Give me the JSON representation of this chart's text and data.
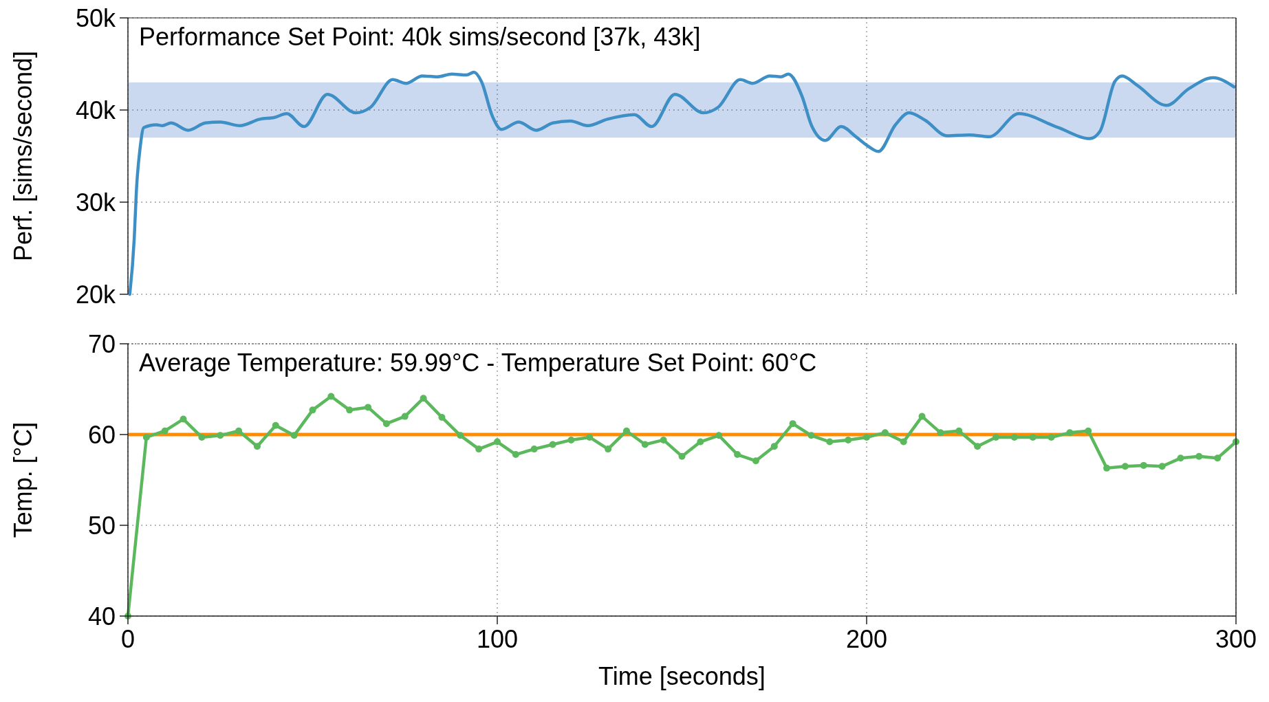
{
  "chart_data": [
    {
      "type": "line",
      "title": "Performance Set Point: 40k sims/second [37k, 43k]",
      "ylabel": "Perf. [sims/second]",
      "xlim": [
        0,
        300
      ],
      "xticks": [
        0,
        100,
        200,
        300
      ],
      "ylim": [
        20000,
        50000
      ],
      "yticks": [
        {
          "value": 20000,
          "label": "20k"
        },
        {
          "value": 30000,
          "label": "30k"
        },
        {
          "value": 40000,
          "label": "40k"
        },
        {
          "value": 50000,
          "label": "50k"
        }
      ],
      "tick_labels": "y",
      "grid": true,
      "line_style": "solid",
      "marker": "none",
      "bands": [
        {
          "axis": "y",
          "from": 37000,
          "to": 43000,
          "color": "#cbd9f0"
        }
      ],
      "series": [
        {
          "color": "#3d8fc6",
          "x": [
            0.5,
            1.7,
            2.3,
            3.3,
            4.3,
            7.7,
            9.3,
            11.7,
            16.3,
            21,
            25,
            30.3,
            35.7,
            39.7,
            43,
            47.7,
            54,
            61.7,
            65.7,
            71.7,
            75.3,
            79.7,
            83.7,
            87.7,
            91.7,
            93.7,
            95.7,
            98.7,
            101.1,
            105.8,
            110.5,
            115.1,
            119.8,
            124.5,
            129.8,
            137.1,
            141.8,
            148.1,
            155.8,
            159.8,
            165.8,
            169.1,
            173.8,
            176.8,
            178.8,
            182.5,
            185.1,
            188.8,
            193.1,
            197.1,
            200.3,
            203.2,
            207.8,
            211.5,
            215.8,
            221.8,
            227.8,
            233.2,
            241.2,
            251.8,
            260.5,
            263.2,
            267.2,
            269.2,
            273.2,
            281.2,
            287.2,
            293.8,
            299.5
          ],
          "values": [
            20000,
            26000,
            31300,
            35900,
            38100,
            38400,
            38300,
            38600,
            37800,
            38600,
            38700,
            38300,
            39000,
            39200,
            39600,
            38200,
            41700,
            39700,
            40300,
            43300,
            42900,
            43700,
            43600,
            43900,
            43800,
            44100,
            43100,
            39300,
            37900,
            38700,
            37800,
            38600,
            38800,
            38300,
            39000,
            39500,
            38200,
            41700,
            39700,
            40300,
            43300,
            42900,
            43700,
            43600,
            43900,
            41500,
            38300,
            36700,
            38200,
            37100,
            36100,
            35500,
            38400,
            39700,
            38900,
            37200,
            37300,
            37100,
            39600,
            38100,
            36900,
            37700,
            43100,
            43700,
            42700,
            40500,
            42300,
            43500,
            42500
          ]
        }
      ]
    },
    {
      "type": "line",
      "title": "Average Temperature: 59.99°C - Temperature Set Point: 60°C",
      "ylabel": "Temp. [°C]",
      "xlabel": "Time [seconds]",
      "xlim": [
        0,
        300
      ],
      "xticks": [
        0,
        100,
        200,
        300
      ],
      "ylim": [
        40,
        70
      ],
      "yticks": [
        40,
        50,
        60,
        70
      ],
      "grid": true,
      "line_style": "solid",
      "marker": "circle",
      "ref_lines": [
        {
          "axis": "y",
          "value": 60,
          "color": "#ff8c00"
        }
      ],
      "series": [
        {
          "color": "#5cb85c",
          "x": [
            0,
            5,
            10,
            15,
            20,
            25,
            30,
            35,
            40,
            45,
            50,
            55,
            60,
            65,
            70,
            75,
            80,
            85,
            90,
            95,
            100,
            105,
            110,
            115,
            120,
            125,
            130,
            135,
            140,
            145,
            150,
            155,
            160,
            165,
            170,
            175,
            180,
            185,
            190,
            195,
            200,
            205,
            210,
            215,
            220,
            225,
            230,
            235,
            240,
            245,
            250,
            255,
            260,
            265,
            270,
            275,
            280,
            285,
            290,
            295,
            300
          ],
          "values": [
            40,
            59.7,
            60.4,
            61.7,
            59.7,
            59.9,
            60.4,
            58.7,
            61.0,
            59.9,
            62.7,
            64.2,
            62.7,
            63.0,
            61.2,
            62.0,
            64.0,
            61.9,
            59.9,
            58.4,
            59.2,
            57.8,
            58.4,
            58.9,
            59.4,
            59.7,
            58.4,
            60.4,
            58.9,
            59.4,
            57.6,
            59.2,
            59.9,
            57.8,
            57.1,
            58.7,
            61.2,
            59.9,
            59.2,
            59.4,
            59.7,
            60.2,
            59.2,
            62.0,
            60.2,
            60.4,
            58.7,
            59.7,
            59.7,
            59.7,
            59.7,
            60.2,
            60.4,
            56.3,
            56.5,
            56.6,
            56.5,
            57.4,
            57.6,
            57.4,
            59.2
          ]
        }
      ]
    }
  ]
}
